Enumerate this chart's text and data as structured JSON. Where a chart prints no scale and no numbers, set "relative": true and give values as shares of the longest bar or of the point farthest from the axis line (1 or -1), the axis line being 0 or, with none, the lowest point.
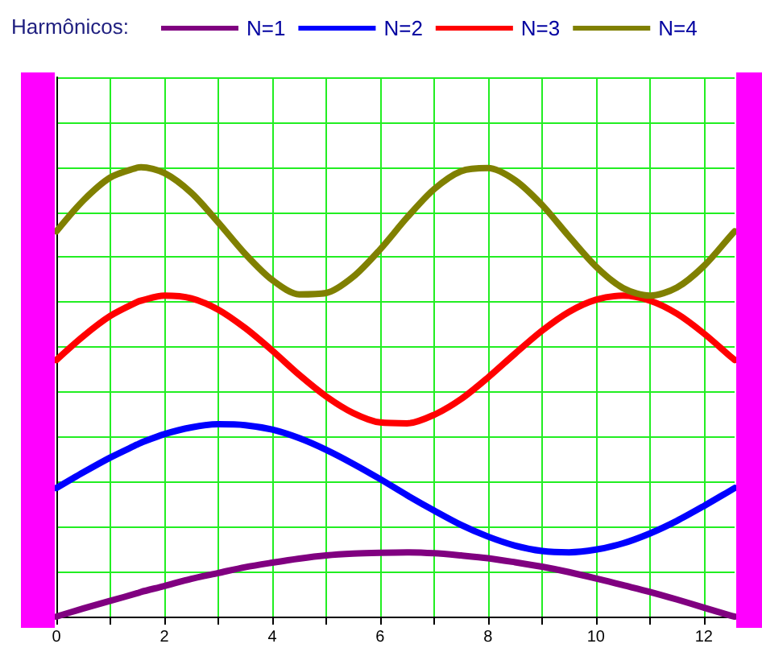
{
  "chart_data": {
    "type": "line",
    "legend_title": "Harmônicos:",
    "relative": true,
    "x": [
      0,
      0.5,
      1,
      1.5,
      1.57,
      2,
      2.5,
      3,
      3.5,
      4,
      4.5,
      5,
      5.5,
      6,
      6.5,
      7,
      7.5,
      8,
      8.5,
      9,
      9.5,
      10,
      10.5,
      11,
      11.5,
      12,
      12.5,
      12.57
    ],
    "series": [
      {
        "name": "N=1",
        "color": "#800080",
        "values": [
          0,
          0.018,
          0.035,
          0.052,
          0.055,
          0.068,
          0.084,
          0.097,
          0.11,
          0.12,
          0.129,
          0.136,
          0.14,
          0.142,
          0.143,
          0.141,
          0.136,
          0.13,
          0.121,
          0.111,
          0.099,
          0.085,
          0.07,
          0.055,
          0.038,
          0.02,
          0.002,
          0
        ]
      },
      {
        "name": "N=2",
        "color": "#0000ff",
        "values": [
          0.286,
          0.321,
          0.354,
          0.383,
          0.387,
          0.406,
          0.421,
          0.428,
          0.426,
          0.416,
          0.397,
          0.371,
          0.34,
          0.306,
          0.27,
          0.236,
          0.204,
          0.178,
          0.158,
          0.146,
          0.143,
          0.149,
          0.163,
          0.185,
          0.213,
          0.246,
          0.281,
          0.286
        ]
      },
      {
        "name": "N=3",
        "color": "#ff0000",
        "values": [
          0.571,
          0.624,
          0.669,
          0.7,
          0.703,
          0.714,
          0.708,
          0.683,
          0.642,
          0.592,
          0.538,
          0.49,
          0.453,
          0.432,
          0.43,
          0.449,
          0.484,
          0.532,
          0.585,
          0.636,
          0.678,
          0.705,
          0.714,
          0.703,
          0.674,
          0.63,
          0.578,
          0.571
        ]
      },
      {
        "name": "N=4",
        "color": "#808000",
        "values": [
          0.857,
          0.926,
          0.977,
          0.999,
          1,
          0.987,
          0.943,
          0.877,
          0.807,
          0.749,
          0.717,
          0.72,
          0.756,
          0.817,
          0.888,
          0.951,
          0.991,
          0.998,
          0.971,
          0.916,
          0.846,
          0.779,
          0.731,
          0.714,
          0.732,
          0.78,
          0.848,
          0.857
        ]
      }
    ],
    "xlim": [
      0,
      12.57
    ],
    "xticks": [
      0,
      {
        "value": 1,
        "label": null
      },
      2,
      {
        "value": 3,
        "label": null
      },
      4,
      {
        "value": 5,
        "label": null
      },
      6,
      {
        "value": 7,
        "label": null
      },
      8,
      {
        "value": 9,
        "label": null
      },
      10,
      {
        "value": 11,
        "label": null
      },
      12
    ],
    "grid": true,
    "legend": "top",
    "marker": "none",
    "line_style": "solid"
  }
}
